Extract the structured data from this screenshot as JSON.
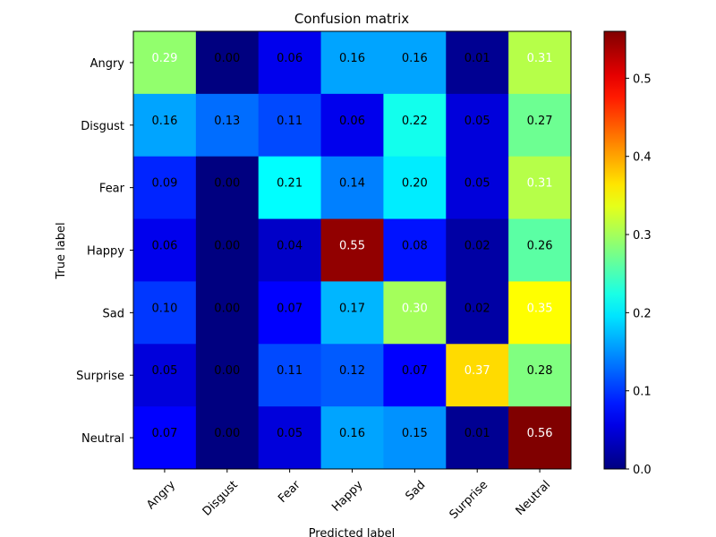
{
  "chart_data": {
    "type": "heatmap",
    "title": "Confusion matrix",
    "xlabel": "Predicted label",
    "ylabel": "True label",
    "x_categories": [
      "Angry",
      "Disgust",
      "Fear",
      "Happy",
      "Sad",
      "Surprise",
      "Neutral"
    ],
    "y_categories": [
      "Angry",
      "Disgust",
      "Fear",
      "Happy",
      "Sad",
      "Surprise",
      "Neutral"
    ],
    "values": [
      [
        0.29,
        0.0,
        0.06,
        0.16,
        0.16,
        0.01,
        0.31
      ],
      [
        0.16,
        0.13,
        0.11,
        0.06,
        0.22,
        0.05,
        0.27
      ],
      [
        0.09,
        0.0,
        0.21,
        0.14,
        0.2,
        0.05,
        0.31
      ],
      [
        0.06,
        0.0,
        0.04,
        0.55,
        0.08,
        0.02,
        0.26
      ],
      [
        0.1,
        0.0,
        0.07,
        0.17,
        0.3,
        0.02,
        0.35
      ],
      [
        0.05,
        0.0,
        0.11,
        0.12,
        0.07,
        0.37,
        0.28
      ],
      [
        0.07,
        0.0,
        0.05,
        0.16,
        0.15,
        0.01,
        0.56
      ]
    ],
    "colormap": "jet",
    "colorbar": {
      "vmin": 0.0,
      "vmax": 0.56,
      "ticks": [
        0.0,
        0.1,
        0.2,
        0.3,
        0.4,
        0.5
      ],
      "tick_labels": [
        "0.0",
        "0.1",
        "0.2",
        "0.3",
        "0.4",
        "0.5"
      ]
    },
    "text_threshold": 0.28,
    "text_colors": {
      "light": "#ffffff",
      "dark": "#000000"
    },
    "grid": false,
    "legend": "colorbar-right"
  }
}
